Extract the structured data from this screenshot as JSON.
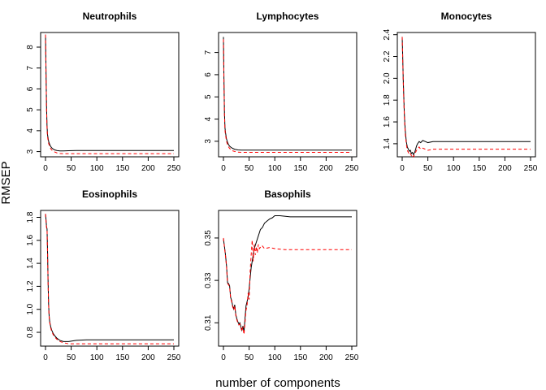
{
  "figure": {
    "ylabel": "RMSEP",
    "xlabel": "number of components"
  },
  "series_legend": {
    "cv": {
      "color": "#000000",
      "style": "solid"
    },
    "adjcv": {
      "color": "#ff0000",
      "style": "dashed"
    }
  },
  "chart_data": [
    {
      "type": "line",
      "title": "Neutrophils",
      "xlim": [
        0,
        250
      ],
      "ylim": [
        2.75,
        8.7
      ],
      "xticks": [
        0,
        50,
        100,
        150,
        200,
        250
      ],
      "yticks": [
        3,
        4,
        5,
        6,
        7,
        8
      ],
      "series": [
        {
          "color": "#000000",
          "dashed": false,
          "x": [
            0,
            1,
            2,
            3,
            4,
            6,
            8,
            10,
            12,
            15,
            18,
            22,
            28,
            35,
            45,
            60,
            80,
            100,
            150,
            200,
            250
          ],
          "y": [
            8.6,
            6.9,
            5.2,
            4.2,
            3.8,
            3.5,
            3.35,
            3.25,
            3.18,
            3.12,
            3.08,
            3.05,
            3.03,
            3.03,
            3.04,
            3.05,
            3.05,
            3.05,
            3.05,
            3.05,
            3.05
          ]
        },
        {
          "color": "#ff0000",
          "dashed": true,
          "x": [
            0,
            1,
            2,
            3,
            4,
            6,
            8,
            10,
            12,
            15,
            18,
            22,
            28,
            35,
            45,
            60,
            80,
            100,
            150,
            200,
            250
          ],
          "y": [
            8.6,
            6.8,
            5.1,
            4.1,
            3.7,
            3.4,
            3.25,
            3.15,
            3.08,
            3.02,
            2.98,
            2.94,
            2.91,
            2.9,
            2.9,
            2.9,
            2.9,
            2.9,
            2.9,
            2.9,
            2.9
          ]
        }
      ]
    },
    {
      "type": "line",
      "title": "Lymphocytes",
      "xlim": [
        0,
        250
      ],
      "ylim": [
        2.3,
        7.9
      ],
      "xticks": [
        0,
        50,
        100,
        150,
        200,
        250
      ],
      "yticks": [
        3,
        4,
        5,
        6,
        7
      ],
      "series": [
        {
          "color": "#000000",
          "dashed": false,
          "x": [
            0,
            1,
            2,
            3,
            4,
            6,
            8,
            10,
            12,
            15,
            18,
            22,
            28,
            35,
            45,
            60,
            80,
            100,
            150,
            200,
            250
          ],
          "y": [
            7.7,
            5.8,
            4.3,
            3.6,
            3.4,
            3.1,
            2.95,
            2.85,
            2.78,
            2.72,
            2.68,
            2.64,
            2.61,
            2.6,
            2.6,
            2.6,
            2.6,
            2.6,
            2.6,
            2.6,
            2.6
          ]
        },
        {
          "color": "#ff0000",
          "dashed": true,
          "x": [
            0,
            1,
            2,
            3,
            4,
            6,
            8,
            10,
            12,
            15,
            18,
            22,
            28,
            35,
            45,
            60,
            80,
            100,
            150,
            200,
            250
          ],
          "y": [
            7.6,
            5.7,
            4.2,
            3.5,
            3.3,
            3.0,
            2.85,
            2.75,
            2.68,
            2.62,
            2.57,
            2.54,
            2.51,
            2.5,
            2.5,
            2.5,
            2.5,
            2.5,
            2.5,
            2.5,
            2.5
          ]
        }
      ]
    },
    {
      "type": "line",
      "title": "Monocytes",
      "xlim": [
        0,
        250
      ],
      "ylim": [
        1.28,
        2.42
      ],
      "xticks": [
        0,
        50,
        100,
        150,
        200,
        250
      ],
      "yticks": [
        1.4,
        1.6,
        1.8,
        2.0,
        2.2,
        2.4
      ],
      "series": [
        {
          "color": "#000000",
          "dashed": false,
          "x": [
            0,
            1,
            2,
            3,
            4,
            5,
            6,
            8,
            10,
            12,
            14,
            16,
            18,
            20,
            22,
            25,
            28,
            30,
            33,
            36,
            40,
            45,
            50,
            60,
            80,
            100,
            150,
            200,
            250
          ],
          "y": [
            2.38,
            2.2,
            2.0,
            1.85,
            1.7,
            1.6,
            1.52,
            1.42,
            1.37,
            1.35,
            1.33,
            1.34,
            1.31,
            1.32,
            1.3,
            1.33,
            1.38,
            1.4,
            1.42,
            1.41,
            1.43,
            1.42,
            1.41,
            1.42,
            1.42,
            1.42,
            1.42,
            1.42,
            1.42
          ]
        },
        {
          "color": "#ff0000",
          "dashed": true,
          "x": [
            0,
            1,
            2,
            3,
            4,
            5,
            6,
            8,
            10,
            12,
            14,
            16,
            18,
            20,
            22,
            25,
            28,
            30,
            33,
            36,
            40,
            45,
            50,
            60,
            80,
            100,
            150,
            200,
            250
          ],
          "y": [
            2.38,
            2.18,
            1.98,
            1.82,
            1.68,
            1.57,
            1.49,
            1.4,
            1.34,
            1.32,
            1.3,
            1.31,
            1.29,
            1.3,
            1.28,
            1.31,
            1.34,
            1.35,
            1.37,
            1.35,
            1.36,
            1.35,
            1.34,
            1.35,
            1.35,
            1.35,
            1.35,
            1.35,
            1.35
          ]
        }
      ]
    },
    {
      "type": "line",
      "title": "Eosinophils",
      "xlim": [
        0,
        250
      ],
      "ylim": [
        0.68,
        1.86
      ],
      "xticks": [
        0,
        50,
        100,
        150,
        200,
        250
      ],
      "yticks": [
        0.8,
        1.0,
        1.2,
        1.4,
        1.6,
        1.8
      ],
      "series": [
        {
          "color": "#000000",
          "dashed": false,
          "x": [
            0,
            1,
            2,
            3,
            4,
            5,
            6,
            7,
            8,
            10,
            12,
            15,
            18,
            22,
            28,
            35,
            45,
            60,
            80,
            100,
            150,
            200,
            250
          ],
          "y": [
            1.83,
            1.78,
            1.72,
            1.7,
            1.5,
            1.25,
            1.05,
            0.95,
            0.9,
            0.85,
            0.82,
            0.79,
            0.77,
            0.75,
            0.73,
            0.72,
            0.72,
            0.73,
            0.735,
            0.735,
            0.735,
            0.735,
            0.735
          ]
        },
        {
          "color": "#ff0000",
          "dashed": true,
          "x": [
            0,
            1,
            2,
            3,
            4,
            5,
            6,
            7,
            8,
            10,
            12,
            15,
            18,
            22,
            28,
            35,
            45,
            60,
            80,
            100,
            150,
            200,
            250
          ],
          "y": [
            1.83,
            1.77,
            1.71,
            1.69,
            1.49,
            1.24,
            1.04,
            0.94,
            0.89,
            0.84,
            0.81,
            0.78,
            0.76,
            0.74,
            0.72,
            0.71,
            0.7,
            0.7,
            0.7,
            0.7,
            0.7,
            0.7,
            0.7
          ]
        }
      ]
    },
    {
      "type": "line",
      "title": "Basophils",
      "xlim": [
        0,
        250
      ],
      "ylim": [
        0.299,
        0.363
      ],
      "xticks": [
        0,
        50,
        100,
        150,
        200,
        250
      ],
      "yticks": [
        0.31,
        0.33,
        0.35
      ],
      "series": [
        {
          "color": "#000000",
          "dashed": false,
          "x": [
            0,
            2,
            4,
            6,
            8,
            10,
            12,
            14,
            16,
            18,
            20,
            22,
            24,
            26,
            28,
            30,
            32,
            34,
            36,
            38,
            40,
            42,
            44,
            46,
            48,
            50,
            52,
            54,
            56,
            58,
            60,
            64,
            68,
            72,
            76,
            80,
            85,
            90,
            95,
            100,
            110,
            130,
            160,
            200,
            250
          ],
          "y": [
            0.3495,
            0.346,
            0.342,
            0.337,
            0.329,
            0.3285,
            0.3275,
            0.322,
            0.3205,
            0.318,
            0.3165,
            0.3185,
            0.314,
            0.312,
            0.3105,
            0.3095,
            0.31,
            0.308,
            0.3065,
            0.3085,
            0.3055,
            0.312,
            0.318,
            0.32,
            0.322,
            0.326,
            0.331,
            0.336,
            0.339,
            0.342,
            0.345,
            0.348,
            0.351,
            0.354,
            0.355,
            0.357,
            0.358,
            0.359,
            0.3595,
            0.3605,
            0.3605,
            0.36,
            0.36,
            0.36,
            0.36
          ]
        },
        {
          "color": "#ff0000",
          "dashed": true,
          "x": [
            0,
            2,
            4,
            6,
            8,
            10,
            12,
            14,
            16,
            18,
            20,
            22,
            24,
            26,
            28,
            30,
            32,
            34,
            36,
            38,
            40,
            42,
            44,
            46,
            48,
            50,
            52,
            54,
            56,
            58,
            60,
            62,
            64,
            66,
            68,
            70,
            75,
            80,
            90,
            100,
            120,
            150,
            200,
            250
          ],
          "y": [
            0.35,
            0.3455,
            0.3415,
            0.3365,
            0.3285,
            0.328,
            0.327,
            0.3215,
            0.32,
            0.3175,
            0.316,
            0.318,
            0.3135,
            0.3115,
            0.31,
            0.309,
            0.3095,
            0.3075,
            0.306,
            0.308,
            0.3045,
            0.31,
            0.316,
            0.318,
            0.324,
            0.321,
            0.334,
            0.342,
            0.349,
            0.339,
            0.347,
            0.342,
            0.346,
            0.343,
            0.347,
            0.345,
            0.3465,
            0.345,
            0.3455,
            0.345,
            0.3445,
            0.3445,
            0.3445,
            0.3445
          ]
        }
      ]
    }
  ]
}
